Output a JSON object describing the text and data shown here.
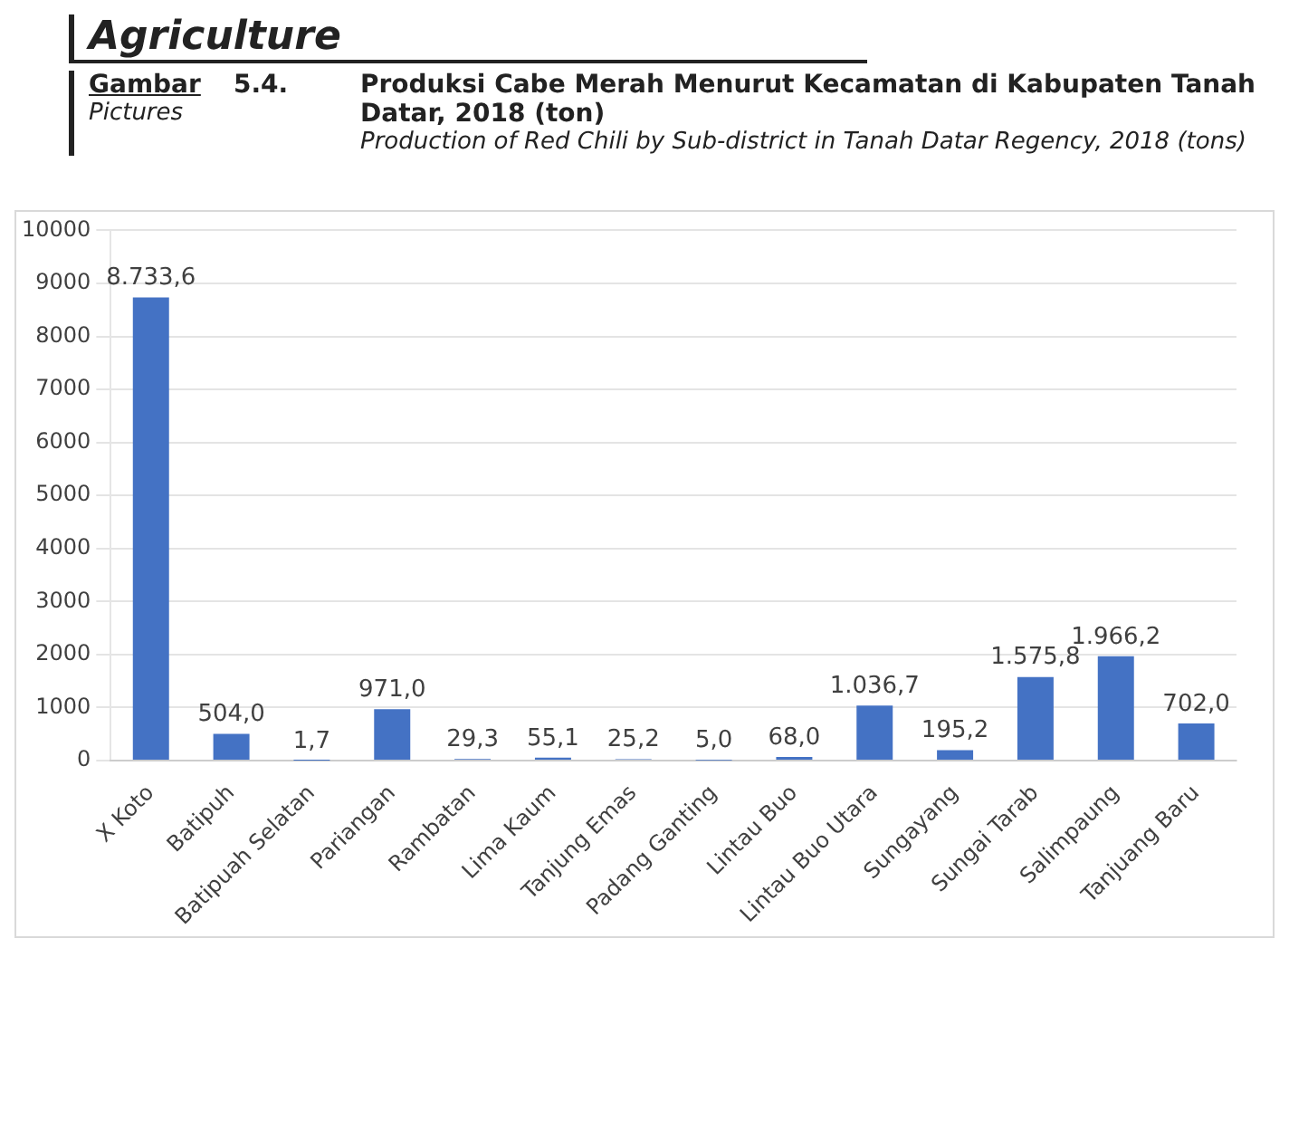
{
  "chart_data": {
    "type": "bar",
    "title": "Produksi Cabe Merah Menurut Kecamatan di Kabupaten Tanah Datar, 2018 (ton)",
    "subtitle": "Production of Red Chili by Sub-district in Tanah Datar Regency, 2018 (tons)",
    "annotations": [
      "Agriculture",
      "Gambar",
      "5.4.",
      "Pictures"
    ],
    "categories": [
      "X Koto",
      "Batipuh",
      "Batipuah Selatan",
      "Pariangan",
      "Rambatan",
      "Lima Kaum",
      "Tanjung Emas",
      "Padang Ganting",
      "Lintau Buo",
      "Lintau Buo Utara",
      "Sungayang",
      "Sungai Tarab",
      "Salimpaung",
      "Tanjuang Baru"
    ],
    "values": [
      8733.6,
      504.0,
      1.7,
      971.0,
      29.3,
      55.1,
      25.2,
      5.0,
      68.0,
      1036.7,
      195.2,
      1575.8,
      1966.2,
      702.0
    ],
    "value_labels": [
      "8.733,6",
      "504,0",
      "1,7",
      "971,0",
      "29,3",
      "55,1",
      "25,2",
      "5,0",
      "68,0",
      "1.036,7",
      "195,2",
      "1.575,8",
      "1.966,2",
      "702,0"
    ],
    "color": "#4472c4",
    "ylim": [
      0,
      10000
    ],
    "yticks": [
      0,
      1000,
      2000,
      3000,
      4000,
      5000,
      6000,
      7000,
      8000,
      9000,
      10000
    ],
    "grid": "y",
    "legend": false
  }
}
